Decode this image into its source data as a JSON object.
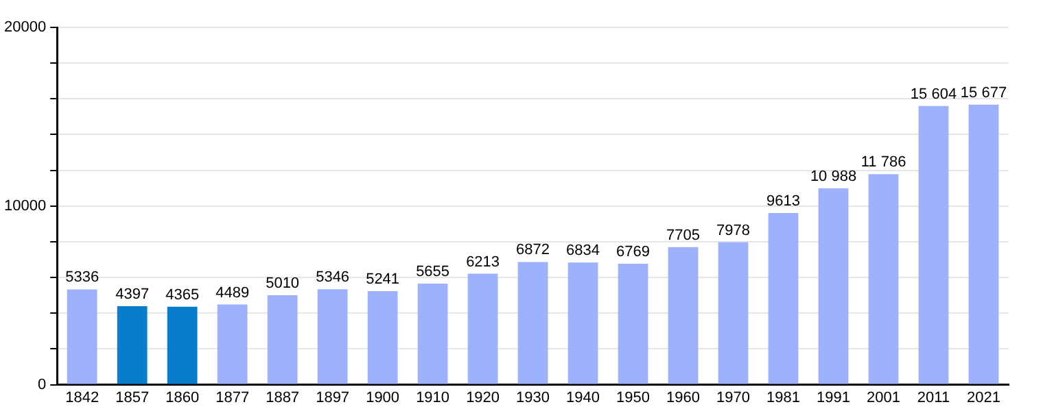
{
  "chart_data": {
    "type": "bar",
    "categories": [
      "1842",
      "1857",
      "1860",
      "1877",
      "1887",
      "1897",
      "1900",
      "1910",
      "1920",
      "1930",
      "1940",
      "1950",
      "1960",
      "1970",
      "1981",
      "1991",
      "2001",
      "2011",
      "2021"
    ],
    "values": [
      5336,
      4397,
      4365,
      4489,
      5010,
      5346,
      5241,
      5655,
      6213,
      6872,
      6834,
      6769,
      7705,
      7978,
      9613,
      10988,
      11786,
      15604,
      15677
    ],
    "colors": [
      "#9db1fc",
      "#0a7ccc",
      "#0a7ccc",
      "#9db1fc",
      "#9db1fc",
      "#9db1fc",
      "#9db1fc",
      "#9db1fc",
      "#9db1fc",
      "#9db1fc",
      "#9db1fc",
      "#9db1fc",
      "#9db1fc",
      "#9db1fc",
      "#9db1fc",
      "#9db1fc",
      "#9db1fc",
      "#9db1fc",
      "#9db1fc"
    ],
    "value_labels": [
      "5336",
      "4397",
      "4365",
      "4489",
      "5010",
      "5346",
      "5241",
      "5655",
      "6213",
      "6872",
      "6834",
      "6769",
      "7705",
      "7978",
      "9613",
      "10 988",
      "11 786",
      "15 604",
      "15 677"
    ],
    "ylim": [
      0,
      20000
    ],
    "yticks": [
      0,
      {
        "value": 2000,
        "label": null
      },
      {
        "value": 4000,
        "label": null
      },
      {
        "value": 6000,
        "label": null
      },
      {
        "value": 8000,
        "label": null
      },
      10000,
      {
        "value": 12000,
        "label": null
      },
      {
        "value": 14000,
        "label": null
      },
      {
        "value": 16000,
        "label": null
      },
      {
        "value": 18000,
        "label": null
      },
      20000
    ],
    "grid": "y"
  }
}
